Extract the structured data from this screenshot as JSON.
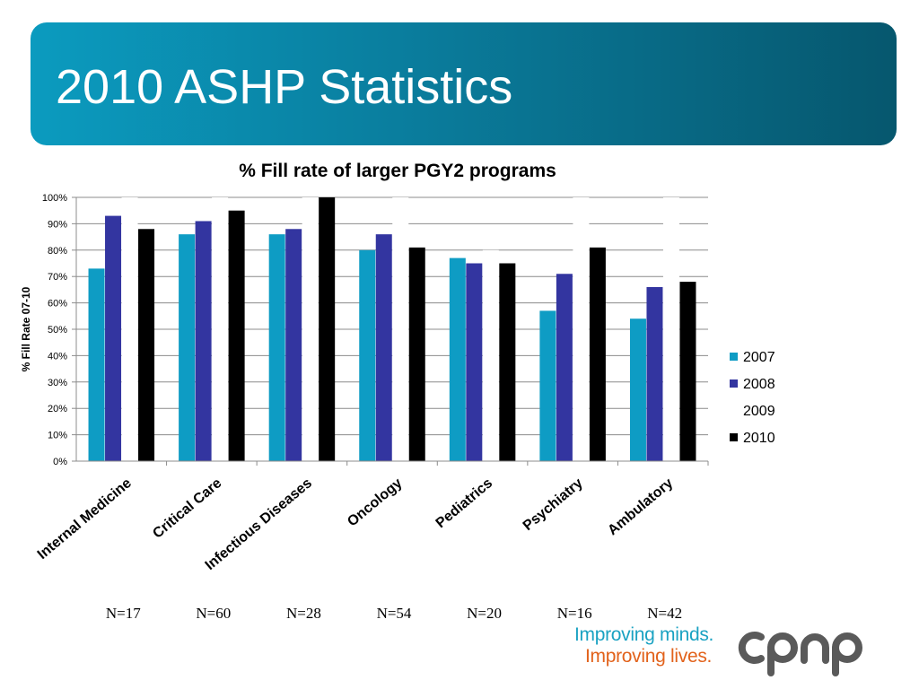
{
  "slide": {
    "title": "2010 ASHP Statistics"
  },
  "chart_data": {
    "type": "bar",
    "title": "% Fill rate of larger PGY2 programs",
    "xlabel": "",
    "ylabel": "% Fill Rate 07-10",
    "ylim": [
      0,
      100
    ],
    "ytick_labels": [
      "0%",
      "10%",
      "20%",
      "30%",
      "40%",
      "50%",
      "60%",
      "70%",
      "80%",
      "90%",
      "100%"
    ],
    "grid": true,
    "legend_position": "right",
    "categories": [
      "Internal Medicine",
      "Critical Care",
      "Infectious Diseases",
      "Oncology",
      "Pediatrics",
      "Psychiatry",
      "Ambulatory"
    ],
    "series": [
      {
        "name": "2007",
        "color": "#0e9cc4",
        "values": [
          73,
          86,
          86,
          80,
          77,
          57,
          54
        ]
      },
      {
        "name": "2008",
        "color": "#3335a0",
        "values": [
          93,
          91,
          88,
          86,
          75,
          71,
          66
        ]
      },
      {
        "name": "2009",
        "color": "#ffffff",
        "values": [
          100,
          100,
          100,
          100,
          80,
          100,
          100
        ]
      },
      {
        "name": "2010",
        "color": "#000000",
        "values": [
          88,
          95,
          100,
          81,
          75,
          81,
          68
        ]
      }
    ],
    "n_labels": [
      "N=17",
      "N=60",
      "N=28",
      "N=54",
      "N=20",
      "N=16",
      "N=42"
    ]
  },
  "logo": {
    "tagline_1": "Improving minds.",
    "tagline_2": "Improving lives.",
    "wordmark": "cpnp",
    "colors": {
      "tagline_1": "#1aa2c2",
      "tagline_2": "#e2621b",
      "wordmark": "#5a5a5a"
    }
  }
}
